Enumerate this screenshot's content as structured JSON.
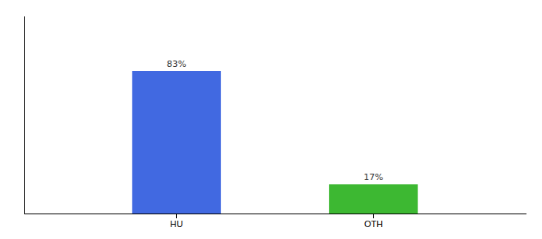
{
  "chart_data": {
    "type": "bar",
    "categories": [
      "HU",
      "OTH"
    ],
    "values": [
      83,
      17
    ],
    "value_labels": [
      "83%",
      "17%"
    ],
    "colors": [
      "#4169e1",
      "#3db832"
    ],
    "ylim": [
      0,
      115
    ],
    "yticks": [],
    "grid": false,
    "data_labels": true,
    "tick_labels": "x"
  }
}
